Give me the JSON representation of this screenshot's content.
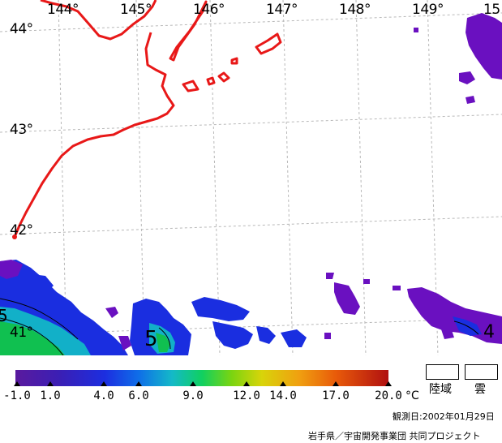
{
  "map": {
    "longitude_labels": [
      "144°",
      "145°",
      "146°",
      "147°",
      "148°",
      "149°",
      "15"
    ],
    "latitude_labels": [
      "44°",
      "43°",
      "42°",
      "41°"
    ],
    "contour_labels": [
      "5",
      "5",
      "4"
    ],
    "colors": {
      "coastline": "#e81818",
      "grid": "#b8b8b8",
      "sst_purple": "#6a10c0",
      "sst_blue": "#1a2ee0",
      "sst_cyan": "#12b0c8",
      "sst_green": "#10c050"
    }
  },
  "scale": {
    "ticks": [
      "-1.0",
      "1.0",
      "4.0",
      "6.0",
      "9.0",
      "12.0",
      "14.0",
      "17.0",
      "20.0"
    ],
    "unit": "°C"
  },
  "legend": {
    "land_label": "陸域",
    "cloud_label": "雲"
  },
  "footer": {
    "observation_date": "観測日:2002年01月29日",
    "credit": "岩手県／宇宙開発事業団  共同プロジェクト"
  }
}
